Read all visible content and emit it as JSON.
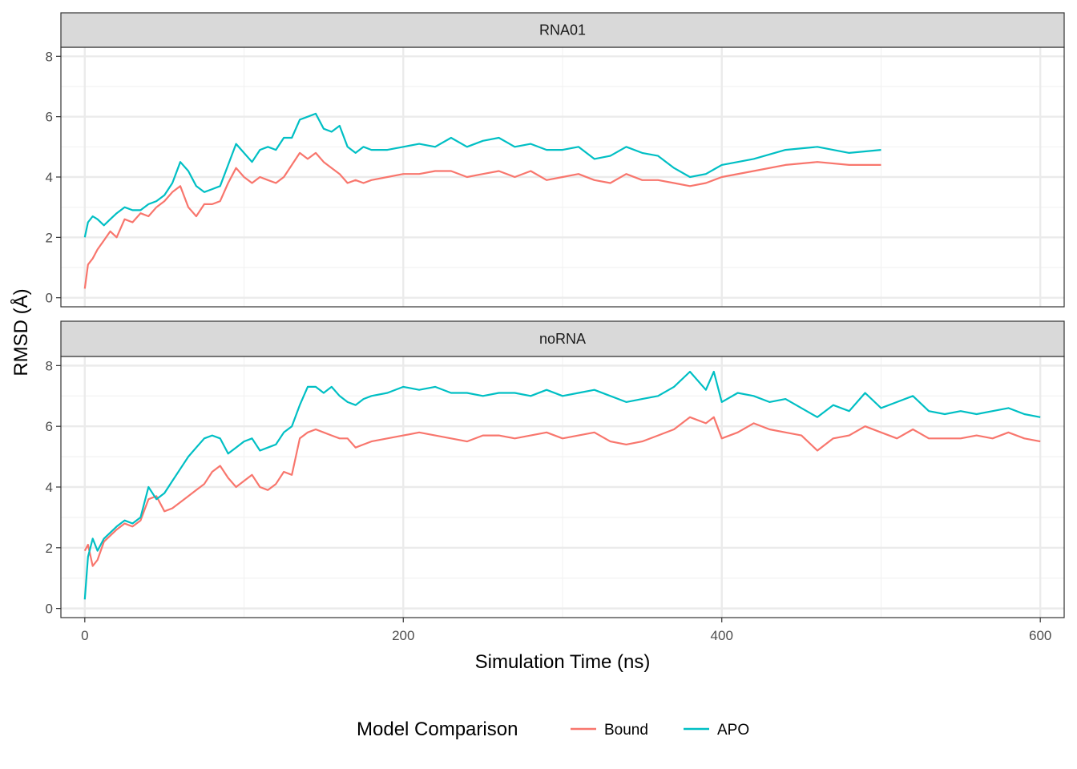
{
  "chart_data": {
    "type": "line",
    "facet_layout": "vertical",
    "xlabel": "Simulation Time (ns)",
    "ylabel": "RMSD (Å)",
    "xlim": [
      -15,
      615
    ],
    "ylim": [
      -0.3,
      8.3
    ],
    "x_ticks": [
      0,
      200,
      400,
      600
    ],
    "x_tick_labels": [
      "0",
      "200",
      "400",
      "600"
    ],
    "y_ticks": [
      0,
      2,
      4,
      6,
      8
    ],
    "y_tick_labels": [
      "0",
      "2",
      "4",
      "6",
      "8"
    ],
    "grid": true,
    "legend": {
      "title": "Model Comparison",
      "position": "bottom",
      "entries": [
        {
          "name": "Bound",
          "color": "#F8766D"
        },
        {
          "name": "APO",
          "color": "#00BFC4"
        }
      ]
    },
    "panels": [
      {
        "label": "RNA01",
        "series": [
          {
            "name": "Bound",
            "color": "#F8766D",
            "x": [
              0,
              2,
              5,
              8,
              12,
              16,
              20,
              25,
              30,
              35,
              40,
              45,
              50,
              55,
              60,
              65,
              70,
              75,
              80,
              85,
              90,
              95,
              100,
              105,
              110,
              115,
              120,
              125,
              130,
              135,
              140,
              145,
              150,
              155,
              160,
              165,
              170,
              175,
              180,
              190,
              200,
              210,
              220,
              230,
              240,
              250,
              260,
              270,
              280,
              290,
              300,
              310,
              320,
              330,
              340,
              350,
              360,
              370,
              380,
              390,
              400,
              420,
              440,
              460,
              480,
              500
            ],
            "y": [
              0.3,
              1.1,
              1.3,
              1.6,
              1.9,
              2.2,
              2.0,
              2.6,
              2.5,
              2.8,
              2.7,
              3.0,
              3.2,
              3.5,
              3.7,
              3.0,
              2.7,
              3.1,
              3.1,
              3.2,
              3.8,
              4.3,
              4.0,
              3.8,
              4.0,
              3.9,
              3.8,
              4.0,
              4.4,
              4.8,
              4.6,
              4.8,
              4.5,
              4.3,
              4.1,
              3.8,
              3.9,
              3.8,
              3.9,
              4.0,
              4.1,
              4.1,
              4.2,
              4.2,
              4.0,
              4.1,
              4.2,
              4.0,
              4.2,
              3.9,
              4.0,
              4.1,
              3.9,
              3.8,
              4.1,
              3.9,
              3.9,
              3.8,
              3.7,
              3.8,
              4.0,
              4.2,
              4.4,
              4.5,
              4.4,
              4.4
            ]
          },
          {
            "name": "APO",
            "color": "#00BFC4",
            "x": [
              0,
              2,
              5,
              8,
              12,
              16,
              20,
              25,
              30,
              35,
              40,
              45,
              50,
              55,
              60,
              65,
              70,
              75,
              80,
              85,
              90,
              95,
              100,
              105,
              110,
              115,
              120,
              125,
              130,
              135,
              140,
              145,
              150,
              155,
              160,
              165,
              170,
              175,
              180,
              190,
              200,
              210,
              220,
              230,
              240,
              250,
              260,
              270,
              280,
              290,
              300,
              310,
              320,
              330,
              340,
              350,
              360,
              370,
              380,
              390,
              400,
              420,
              440,
              460,
              480,
              500
            ],
            "y": [
              2.0,
              2.5,
              2.7,
              2.6,
              2.4,
              2.6,
              2.8,
              3.0,
              2.9,
              2.9,
              3.1,
              3.2,
              3.4,
              3.8,
              4.5,
              4.2,
              3.7,
              3.5,
              3.6,
              3.7,
              4.4,
              5.1,
              4.8,
              4.5,
              4.9,
              5.0,
              4.9,
              5.3,
              5.3,
              5.9,
              6.0,
              6.1,
              5.6,
              5.5,
              5.7,
              5.0,
              4.8,
              5.0,
              4.9,
              4.9,
              5.0,
              5.1,
              5.0,
              5.3,
              5.0,
              5.2,
              5.3,
              5.0,
              5.1,
              4.9,
              4.9,
              5.0,
              4.6,
              4.7,
              5.0,
              4.8,
              4.7,
              4.3,
              4.0,
              4.1,
              4.4,
              4.6,
              4.9,
              5.0,
              4.8,
              4.9
            ]
          }
        ]
      },
      {
        "label": "noRNA",
        "series": [
          {
            "name": "Bound",
            "color": "#F8766D",
            "x": [
              0,
              2,
              5,
              8,
              12,
              16,
              20,
              25,
              30,
              35,
              40,
              45,
              50,
              55,
              60,
              65,
              70,
              75,
              80,
              85,
              90,
              95,
              100,
              105,
              110,
              115,
              120,
              125,
              130,
              135,
              140,
              145,
              150,
              155,
              160,
              165,
              170,
              175,
              180,
              190,
              200,
              210,
              220,
              230,
              240,
              250,
              260,
              270,
              280,
              290,
              300,
              310,
              320,
              330,
              340,
              350,
              360,
              370,
              380,
              390,
              395,
              400,
              410,
              420,
              430,
              440,
              450,
              460,
              470,
              480,
              490,
              500,
              510,
              520,
              530,
              540,
              550,
              560,
              570,
              580,
              590,
              600
            ],
            "y": [
              1.9,
              2.1,
              1.4,
              1.6,
              2.2,
              2.4,
              2.6,
              2.8,
              2.7,
              2.9,
              3.6,
              3.7,
              3.2,
              3.3,
              3.5,
              3.7,
              3.9,
              4.1,
              4.5,
              4.7,
              4.3,
              4.0,
              4.2,
              4.4,
              4.0,
              3.9,
              4.1,
              4.5,
              4.4,
              5.6,
              5.8,
              5.9,
              5.8,
              5.7,
              5.6,
              5.6,
              5.3,
              5.4,
              5.5,
              5.6,
              5.7,
              5.8,
              5.7,
              5.6,
              5.5,
              5.7,
              5.7,
              5.6,
              5.7,
              5.8,
              5.6,
              5.7,
              5.8,
              5.5,
              5.4,
              5.5,
              5.7,
              5.9,
              6.3,
              6.1,
              6.3,
              5.6,
              5.8,
              6.1,
              5.9,
              5.8,
              5.7,
              5.2,
              5.6,
              5.7,
              6.0,
              5.8,
              5.6,
              5.9,
              5.6,
              5.6,
              5.6,
              5.7,
              5.6,
              5.8,
              5.6,
              5.5
            ]
          },
          {
            "name": "APO",
            "color": "#00BFC4",
            "x": [
              0,
              2,
              5,
              8,
              12,
              16,
              20,
              25,
              30,
              35,
              40,
              45,
              50,
              55,
              60,
              65,
              70,
              75,
              80,
              85,
              90,
              95,
              100,
              105,
              110,
              115,
              120,
              125,
              130,
              135,
              140,
              145,
              150,
              155,
              160,
              165,
              170,
              175,
              180,
              190,
              200,
              210,
              220,
              230,
              240,
              250,
              260,
              270,
              280,
              290,
              300,
              310,
              320,
              330,
              340,
              350,
              360,
              370,
              380,
              390,
              395,
              400,
              410,
              420,
              430,
              440,
              450,
              460,
              470,
              480,
              490,
              500,
              510,
              520,
              530,
              540,
              550,
              560,
              570,
              580,
              590,
              600
            ],
            "y": [
              0.3,
              1.7,
              2.3,
              1.9,
              2.3,
              2.5,
              2.7,
              2.9,
              2.8,
              3.0,
              4.0,
              3.6,
              3.8,
              4.2,
              4.6,
              5.0,
              5.3,
              5.6,
              5.7,
              5.6,
              5.1,
              5.3,
              5.5,
              5.6,
              5.2,
              5.3,
              5.4,
              5.8,
              6.0,
              6.7,
              7.3,
              7.3,
              7.1,
              7.3,
              7.0,
              6.8,
              6.7,
              6.9,
              7.0,
              7.1,
              7.3,
              7.2,
              7.3,
              7.1,
              7.1,
              7.0,
              7.1,
              7.1,
              7.0,
              7.2,
              7.0,
              7.1,
              7.2,
              7.0,
              6.8,
              6.9,
              7.0,
              7.3,
              7.8,
              7.2,
              7.8,
              6.8,
              7.1,
              7.0,
              6.8,
              6.9,
              6.6,
              6.3,
              6.7,
              6.5,
              7.1,
              6.6,
              6.8,
              7.0,
              6.5,
              6.4,
              6.5,
              6.4,
              6.5,
              6.6,
              6.4,
              6.3
            ]
          }
        ]
      }
    ]
  }
}
